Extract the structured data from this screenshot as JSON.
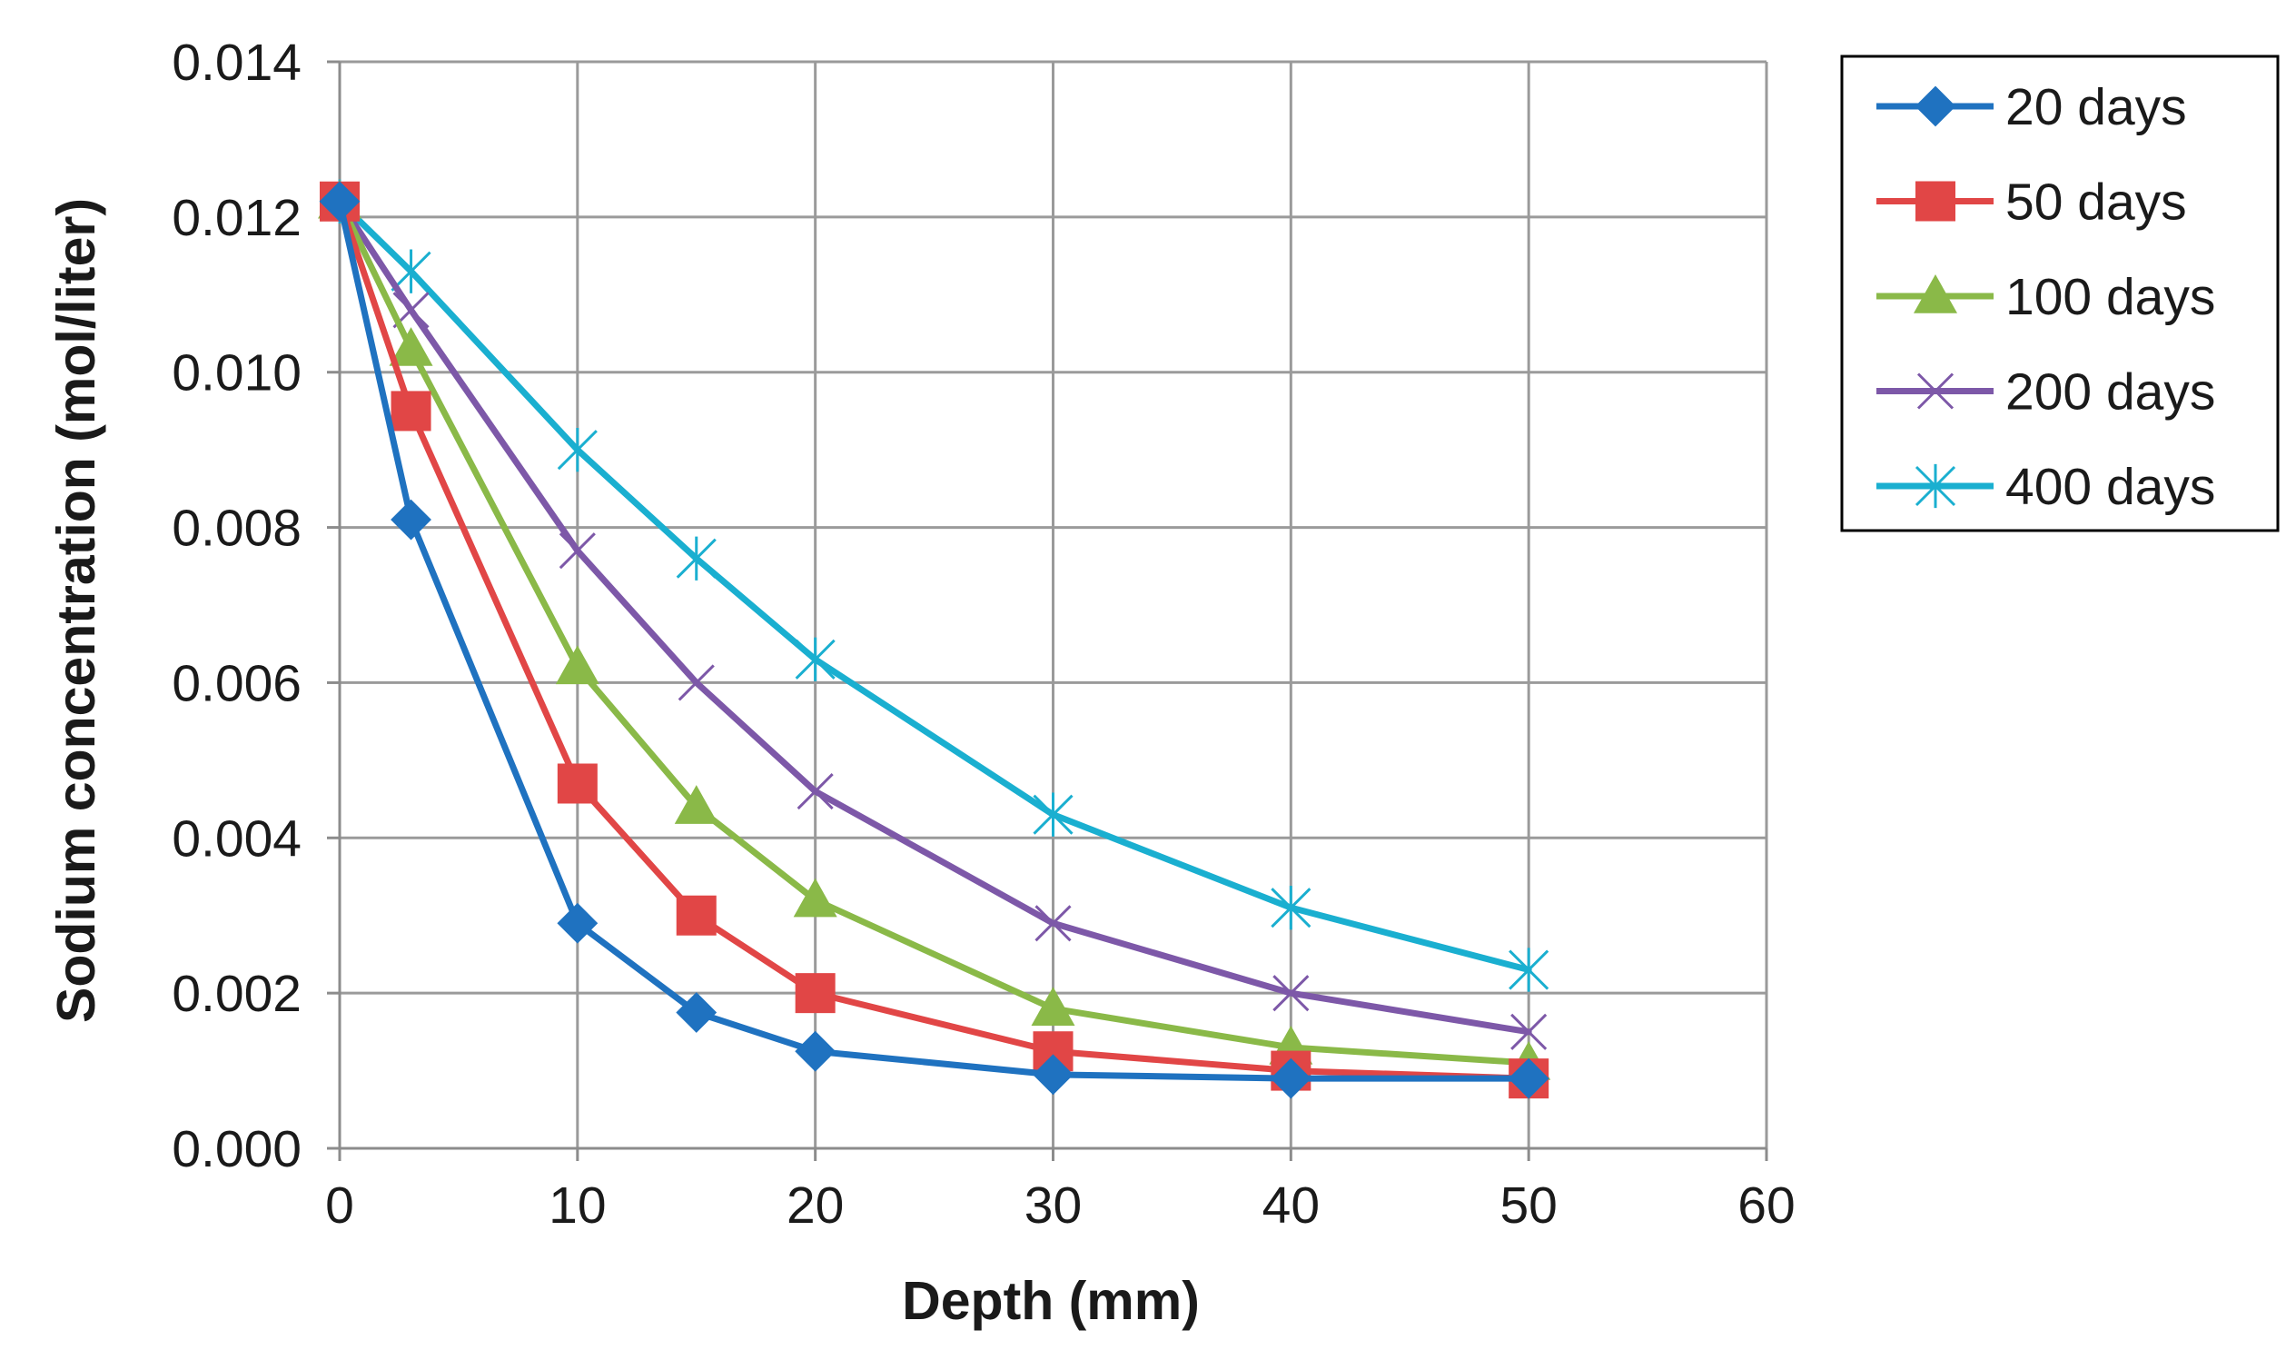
{
  "chart_data": {
    "type": "line",
    "title": "",
    "xlabel": "Depth (mm)",
    "ylabel": "Sodium concentration (mol/liter)",
    "xlim": [
      0,
      60
    ],
    "ylim": [
      0,
      0.014
    ],
    "xticks": [
      0,
      10,
      20,
      30,
      40,
      50,
      60
    ],
    "yticks": [
      0.0,
      0.002,
      0.004,
      0.006,
      0.008,
      0.01,
      0.012,
      0.014
    ],
    "xtick_labels": [
      "0",
      "10",
      "20",
      "30",
      "40",
      "50",
      "60"
    ],
    "ytick_labels": [
      "0.000",
      "0.002",
      "0.004",
      "0.006",
      "0.008",
      "0.010",
      "0.012",
      "0.014"
    ],
    "grid": true,
    "legend_position": "top-right-outside",
    "x": [
      0,
      3,
      10,
      15,
      20,
      30,
      40,
      50
    ],
    "series": [
      {
        "name": "20 days",
        "color": "#1f72c0",
        "marker": "diamond",
        "values": [
          0.0122,
          0.0081,
          0.0029,
          0.00175,
          0.00125,
          0.00095,
          0.0009,
          0.0009
        ]
      },
      {
        "name": "50 days",
        "color": "#e14646",
        "marker": "square",
        "values": [
          0.0122,
          0.0095,
          0.0047,
          0.003,
          0.002,
          0.00125,
          0.001,
          0.0009
        ]
      },
      {
        "name": "100 days",
        "color": "#8ab948",
        "marker": "triangle",
        "values": [
          0.0122,
          0.0103,
          0.0062,
          0.0044,
          0.0032,
          0.0018,
          0.0013,
          0.0011
        ]
      },
      {
        "name": "200 days",
        "color": "#7d58a8",
        "marker": "x",
        "values": [
          0.0122,
          0.0108,
          0.0077,
          0.006,
          0.0046,
          0.0029,
          0.002,
          0.0015
        ]
      },
      {
        "name": "400 days",
        "color": "#1aafd0",
        "marker": "star",
        "values": [
          0.0122,
          0.0113,
          0.009,
          0.0076,
          0.0063,
          0.0043,
          0.0031,
          0.0023
        ]
      }
    ]
  }
}
